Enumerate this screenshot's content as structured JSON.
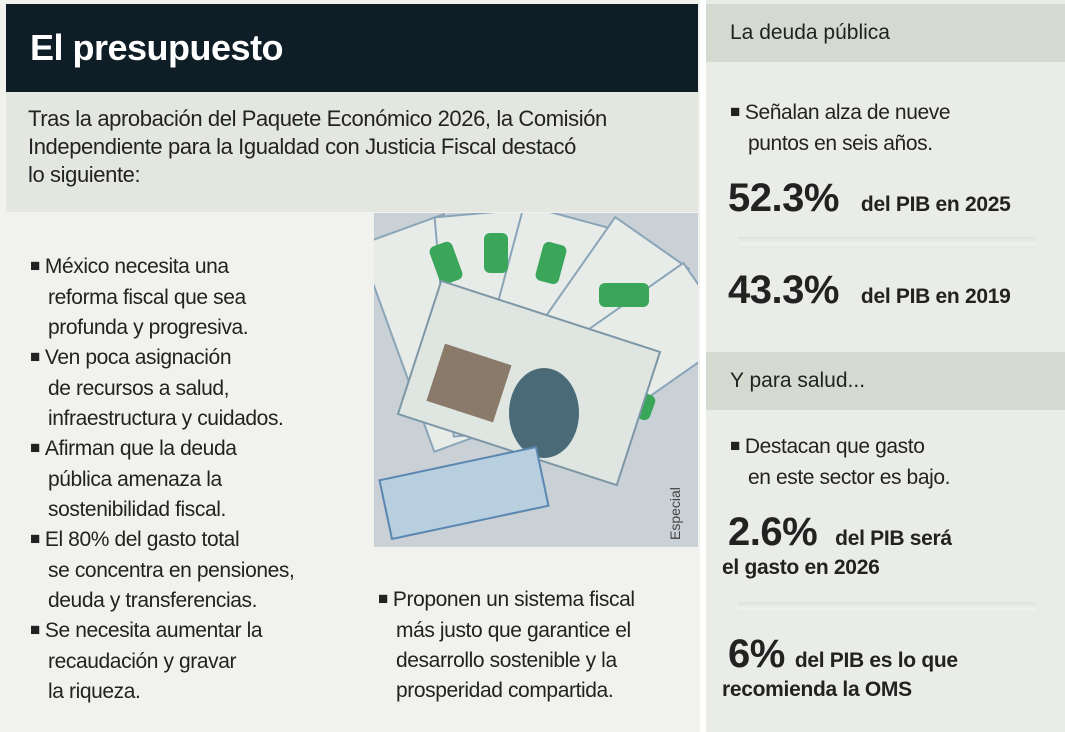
{
  "header": {
    "title": "El presupuesto"
  },
  "intro": [
    "Tras la aprobación del Paquete Económico 2026, la Comisión",
    "Independiente para la Igualdad con Justicia Fiscal destacó",
    "lo siguiente:"
  ],
  "bullets": [
    [
      "México necesita una",
      "reforma fiscal que sea",
      "profunda y progresiva."
    ],
    [
      "Ven poca asignación",
      "de recursos a salud,",
      "infraestructura y cuidados."
    ],
    [
      "Afirman que la deuda",
      "pública amenaza la",
      "sostenibilidad fiscal."
    ],
    [
      "El 80% del gasto total",
      "se concentra en pensiones,",
      "deuda y transferencias."
    ],
    [
      "Se necesita aumentar la",
      "recaudación y gravar",
      "la riqueza."
    ]
  ],
  "final_bullet": [
    "Proponen un sistema fiscal",
    "más justo que garantice el",
    "desarrollo sostenible y la",
    "prosperidad compartida."
  ],
  "photo_credit": "Especial",
  "sidebar": {
    "debt": {
      "title": "La deuda pública",
      "bullet": [
        "Señalan alza de nueve",
        "puntos en seis años."
      ],
      "stats": [
        {
          "value": "52.3%",
          "label": "del PIB en 2025"
        },
        {
          "value": "43.3%",
          "label": "del PIB en 2019"
        }
      ]
    },
    "health": {
      "title": "Y para salud...",
      "bullet": [
        "Destacan que gasto",
        "en este sector es bajo."
      ],
      "stats": [
        {
          "value": "2.6%",
          "label": "del PIB será",
          "label2": "el gasto en 2026"
        },
        {
          "value": "6%",
          "label": "del PIB es lo que",
          "label2": "recomienda la OMS"
        }
      ]
    }
  }
}
